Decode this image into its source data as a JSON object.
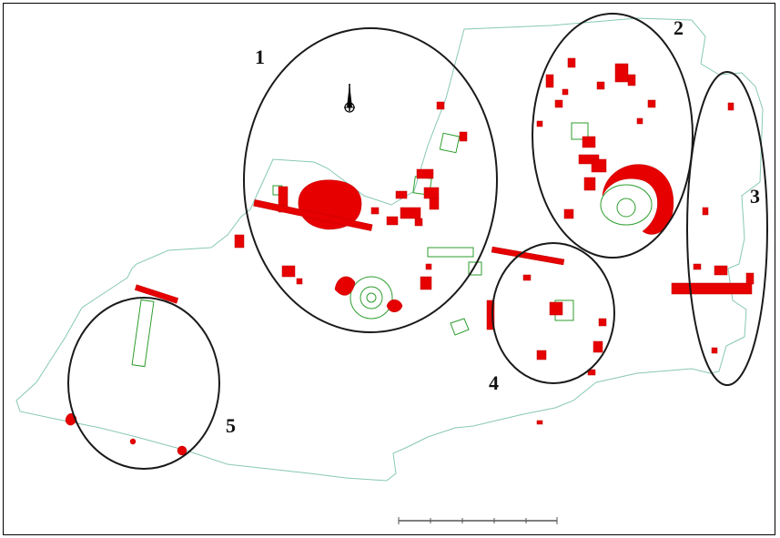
{
  "map": {
    "colors": {
      "site_outline": "#88c8b4",
      "feature_outline": "#2e9e2e",
      "excavated_fill": "#e60000",
      "zone_ring": "#1a1a1a"
    },
    "zones": [
      {
        "id": "1",
        "label": "1"
      },
      {
        "id": "2",
        "label": "2"
      },
      {
        "id": "3",
        "label": "3"
      },
      {
        "id": "4",
        "label": "4"
      },
      {
        "id": "5",
        "label": "5"
      }
    ],
    "north_arrow": {
      "icon": "north-arrow-icon"
    },
    "scale_bar": {
      "icon": "scale-bar",
      "tick_labels": [
        "",
        "",
        "",
        "",
        "",
        ""
      ]
    }
  }
}
